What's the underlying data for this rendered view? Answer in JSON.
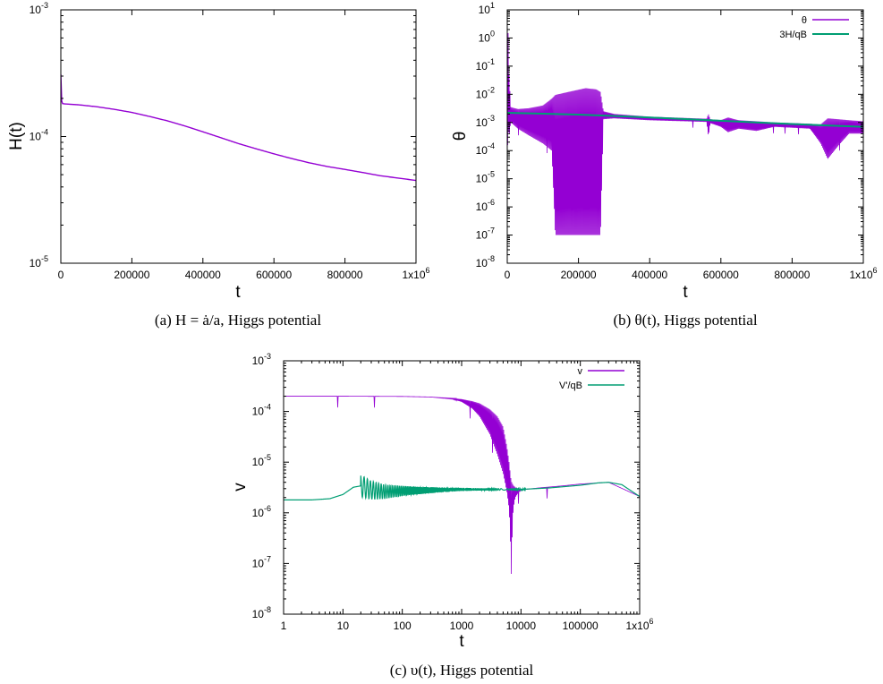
{
  "colors": {
    "purple": "#9400d3",
    "green": "#009e73",
    "frame": "#000000"
  },
  "chart_data": [
    {
      "type": "line",
      "panel": "a",
      "caption": "(a) H = ȧ/a, Higgs potential",
      "xlabel": "t",
      "ylabel": "H(t)",
      "xscale": "linear",
      "yscale": "log",
      "xlim": [
        0,
        1000000
      ],
      "ylim": [
        1e-05,
        0.001
      ],
      "xticks": [
        0,
        200000,
        400000,
        600000,
        800000,
        1000000
      ],
      "xtick_labels": [
        "0",
        "200000",
        "400000",
        "600000",
        "800000",
        "1x10"
      ],
      "xtick_exp": "6",
      "yticks": [
        1e-05,
        0.0001,
        0.001
      ],
      "ytick_mantissa": [
        "10",
        "10",
        "10"
      ],
      "ytick_exp": [
        "-5",
        "-4",
        "-3"
      ],
      "legend": "none",
      "series": [
        {
          "color": "#9400d3",
          "x": [
            0,
            1000,
            3000,
            5000,
            10000,
            50000,
            100000,
            150000,
            200000,
            250000,
            300000,
            350000,
            400000,
            450000,
            500000,
            550000,
            600000,
            650000,
            700000,
            750000,
            800000,
            850000,
            900000,
            950000,
            1000000
          ],
          "y": [
            0.00031,
            0.00021,
            0.000185,
            0.000182,
            0.000181,
            0.000178,
            0.000172,
            0.000164,
            0.000155,
            0.000144,
            0.000133,
            0.000121,
            0.000109,
            9.8e-05,
            8.8e-05,
            8e-05,
            7.3e-05,
            6.7e-05,
            6.2e-05,
            5.8e-05,
            5.5e-05,
            5.2e-05,
            4.9e-05,
            4.7e-05,
            4.5e-05
          ]
        }
      ]
    },
    {
      "type": "line",
      "panel": "b",
      "caption": "(b) θ(t), Higgs potential",
      "xlabel": "t",
      "ylabel": "θ",
      "xscale": "linear",
      "yscale": "log",
      "xlim": [
        0,
        1000000
      ],
      "ylim": [
        1e-08,
        10
      ],
      "xticks": [
        0,
        200000,
        400000,
        600000,
        800000,
        1000000
      ],
      "xtick_labels": [
        "0",
        "200000",
        "400000",
        "600000",
        "800000",
        "1x10"
      ],
      "xtick_exp": "6",
      "yticks": [
        1e-08,
        1e-07,
        1e-06,
        1e-05,
        0.0001,
        0.001,
        0.01,
        0.1,
        1,
        10
      ],
      "ytick_mantissa": [
        "10",
        "10",
        "10",
        "10",
        "10",
        "10",
        "10",
        "10",
        "10",
        "10"
      ],
      "ytick_exp": [
        "-8",
        "-7",
        "-6",
        "-5",
        "-4",
        "-3",
        "-2",
        "-1",
        "0",
        "1"
      ],
      "legend": "top-right",
      "series": [
        {
          "name": "θ",
          "color": "#9400d3",
          "style": "envelope",
          "x": [
            0,
            2000,
            5000,
            10000,
            30000,
            60000,
            100000,
            125000,
            135000,
            170000,
            220000,
            250000,
            262000,
            270000,
            300000,
            400000,
            560000,
            565000,
            570000,
            600000,
            620000,
            650000,
            700000,
            750000,
            800000,
            850000,
            880000,
            900000,
            930000,
            960000,
            1000000
          ],
          "upper": [
            0.002,
            3.0,
            0.05,
            0.0035,
            0.003,
            0.0032,
            0.004,
            0.007,
            0.0095,
            0.012,
            0.0165,
            0.015,
            0.012,
            0.0025,
            0.002,
            0.0016,
            0.00135,
            0.002,
            0.0013,
            0.0012,
            0.0015,
            0.0012,
            0.0011,
            0.001,
            0.00095,
            0.0009,
            0.00085,
            0.0014,
            0.0013,
            0.0012,
            0.0011
          ],
          "lower": [
            1e-05,
            0.0008,
            0.0003,
            0.001,
            0.0006,
            0.00035,
            0.00018,
            0.0001,
            1e-07,
            1e-07,
            1e-07,
            1e-07,
            1e-07,
            0.0013,
            0.0014,
            0.0012,
            0.00105,
            0.0003,
            0.00095,
            0.0007,
            0.00045,
            0.0006,
            0.0005,
            0.0007,
            0.00065,
            0.0006,
            0.00018,
            5e-05,
            0.00015,
            0.0004,
            0.0004
          ]
        },
        {
          "name": "3H/qB",
          "color": "#009e73",
          "x": [
            0,
            100000,
            200000,
            300000,
            400000,
            500000,
            600000,
            700000,
            800000,
            900000,
            1000000
          ],
          "y": [
            0.0022,
            0.00205,
            0.0019,
            0.0017,
            0.0015,
            0.00132,
            0.00115,
            0.001,
            0.00088,
            0.00078,
            0.0007
          ]
        }
      ]
    },
    {
      "type": "line",
      "panel": "c",
      "caption": "(c) υ(t), Higgs potential",
      "xlabel": "t",
      "ylabel": "v",
      "xscale": "log",
      "yscale": "log",
      "xlim": [
        1,
        1000000
      ],
      "ylim": [
        1e-08,
        0.001
      ],
      "xticks": [
        1,
        10,
        100,
        1000,
        10000,
        100000,
        1000000
      ],
      "xtick_labels": [
        "1",
        "10",
        "100",
        "1000",
        "10000",
        "100000",
        "1x10"
      ],
      "xtick_exp": "6",
      "yticks": [
        1e-08,
        1e-07,
        1e-06,
        1e-05,
        0.0001,
        0.001
      ],
      "ytick_mantissa": [
        "10",
        "10",
        "10",
        "10",
        "10",
        "10"
      ],
      "ytick_exp": [
        "-8",
        "-7",
        "-6",
        "-5",
        "-4",
        "-3"
      ],
      "legend": "top-right",
      "series": [
        {
          "name": "v",
          "color": "#9400d3",
          "style": "envelope",
          "x": [
            1,
            10,
            100,
            300,
            700,
            1000,
            1500,
            2000,
            3000,
            4000,
            5000,
            5800,
            6300,
            6600,
            6800,
            7000,
            7400,
            8000,
            9000,
            10000,
            12000,
            20000,
            50000,
            100000,
            300000,
            1000000
          ],
          "upper": [
            0.0002,
            0.0002,
            0.000198,
            0.000193,
            0.000182,
            0.000175,
            0.00016,
            0.000145,
            0.00011,
            8e-05,
            5e-05,
            2e-05,
            1e-05,
            6e-06,
            4.5e-06,
            4e-06,
            3.5e-06,
            3.2e-06,
            3e-06,
            2.9e-06,
            2.9e-06,
            3.1e-06,
            3.4e-06,
            3.7e-06,
            4e-06,
            2.1e-06
          ],
          "lower": [
            0.0002,
            0.0002,
            0.000198,
            0.000193,
            0.000175,
            0.000155,
            0.000115,
            8e-05,
            3.5e-05,
            1.4e-05,
            6e-06,
            2.5e-06,
            1.2e-06,
            4e-07,
            3.5e-08,
            2e-07,
            1.2e-06,
            2e-06,
            2.5e-06,
            2.8e-06,
            2.9e-06,
            3.1e-06,
            3.4e-06,
            3.7e-06,
            4e-06,
            2.1e-06
          ]
        },
        {
          "name": "V'/qB",
          "color": "#009e73",
          "style": "oscillating",
          "base_x": [
            1,
            3,
            6,
            10,
            15,
            20,
            30,
            50,
            100,
            300,
            1000,
            3000,
            10000,
            30000,
            100000,
            200000,
            300000,
            500000,
            1000000
          ],
          "base_y": [
            1.8e-06,
            1.8e-06,
            1.9e-06,
            2.3e-06,
            3.2e-06,
            3.4e-06,
            2.8e-06,
            2.6e-06,
            2.7e-06,
            2.8e-06,
            2.9e-06,
            2.9e-06,
            2.9e-06,
            3.1e-06,
            3.5e-06,
            3.9e-06,
            4e-06,
            3.6e-06,
            2.1e-06
          ],
          "osc_start": 20,
          "osc_end": 12000,
          "osc_amp_start": 0.22,
          "osc_amp_end": 0.01
        }
      ]
    }
  ]
}
